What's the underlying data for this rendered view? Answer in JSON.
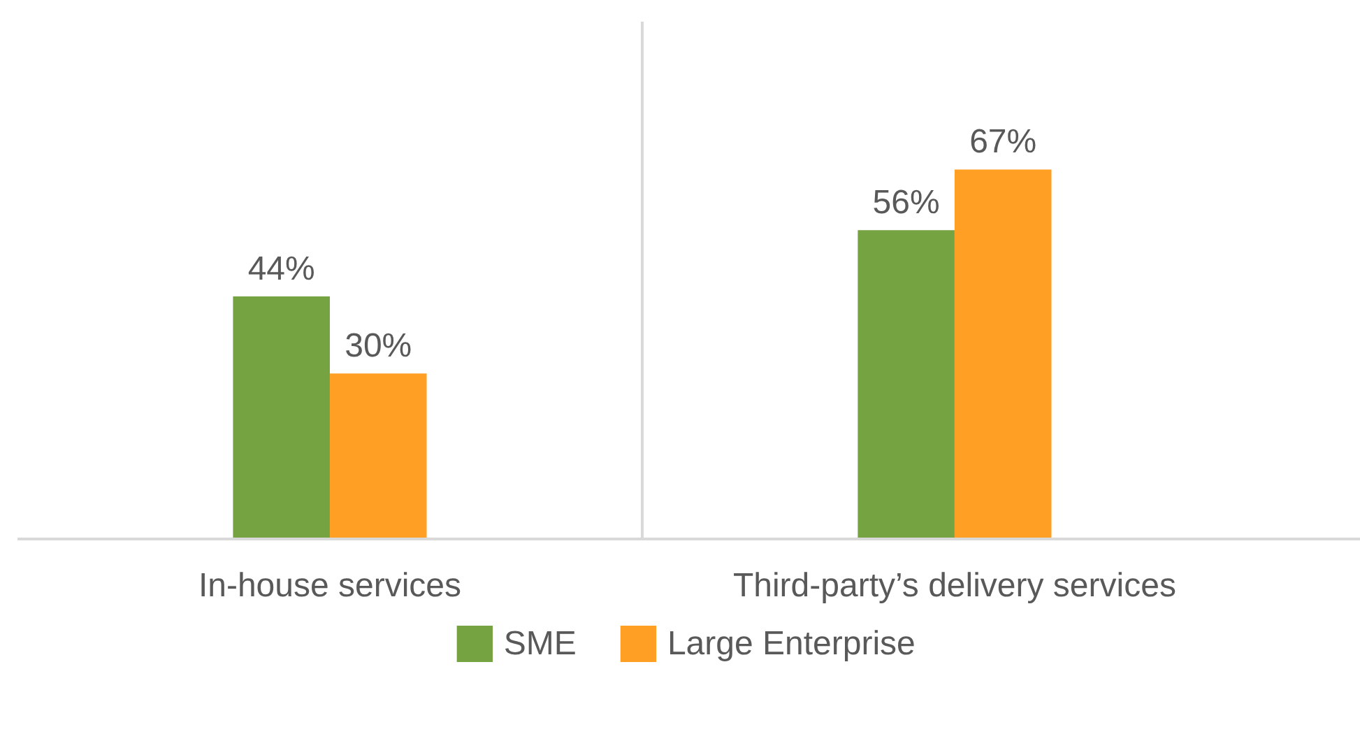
{
  "chart_data": {
    "type": "bar",
    "categories": [
      "In-house services",
      "Third-party’s delivery services"
    ],
    "series": [
      {
        "name": "SME",
        "color": "#76a341",
        "values": [
          44,
          56
        ],
        "value_labels": [
          "44%",
          "56%"
        ]
      },
      {
        "name": "Large Enterprise",
        "color": "#ffa024",
        "values": [
          30,
          67
        ],
        "value_labels": [
          "30%",
          "67%"
        ]
      }
    ],
    "data_labels": true,
    "grid": "x",
    "legend": "bottom"
  }
}
